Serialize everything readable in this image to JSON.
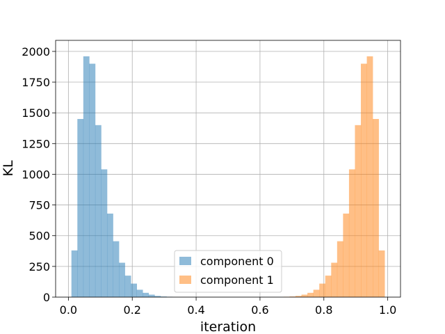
{
  "chart_data": {
    "type": "bar",
    "xlabel": "iteration",
    "ylabel": "KL",
    "xlim": [
      -0.04,
      1.04
    ],
    "ylim": [
      0,
      2090
    ],
    "grid": true,
    "legend_position": "lower-center",
    "x_ticks": [
      {
        "value": 0.0,
        "label": "0.0"
      },
      {
        "value": 0.2,
        "label": "0.2"
      },
      {
        "value": 0.4,
        "label": "0.4"
      },
      {
        "value": 0.6,
        "label": "0.6"
      },
      {
        "value": 0.8,
        "label": "0.8"
      },
      {
        "value": 1.0,
        "label": "1.0"
      }
    ],
    "y_ticks": [
      {
        "value": 0,
        "label": "0"
      },
      {
        "value": 250,
        "label": "250"
      },
      {
        "value": 500,
        "label": "500"
      },
      {
        "value": 750,
        "label": "750"
      },
      {
        "value": 1000,
        "label": "1000"
      },
      {
        "value": 1250,
        "label": "1250"
      },
      {
        "value": 1500,
        "label": "1500"
      },
      {
        "value": 1750,
        "label": "1750"
      },
      {
        "value": 2000,
        "label": "2000"
      }
    ],
    "bin_width": 0.0186,
    "series": [
      {
        "name": "component 0",
        "color": "#1f77b4",
        "opacity": 0.5,
        "bin_starts": [
          0.0095,
          0.0281,
          0.0467,
          0.0653,
          0.0839,
          0.1025,
          0.1211,
          0.1397,
          0.1583,
          0.1769,
          0.1955,
          0.2141,
          0.2327,
          0.2513,
          0.2699,
          0.2885,
          0.3071
        ],
        "values": [
          380,
          1450,
          1960,
          1900,
          1400,
          1040,
          680,
          455,
          280,
          175,
          110,
          60,
          35,
          20,
          10,
          5,
          3
        ]
      },
      {
        "name": "component 1",
        "color": "#ff7f0e",
        "opacity": 0.5,
        "bin_starts": [
          0.6741,
          0.6927,
          0.7113,
          0.7299,
          0.7485,
          0.7671,
          0.7857,
          0.8043,
          0.8229,
          0.8415,
          0.8601,
          0.8787,
          0.8973,
          0.9159,
          0.9345,
          0.9531,
          0.9717
        ],
        "values": [
          3,
          5,
          10,
          20,
          35,
          60,
          110,
          175,
          280,
          455,
          680,
          1040,
          1400,
          1900,
          1960,
          1450,
          380
        ]
      }
    ]
  }
}
